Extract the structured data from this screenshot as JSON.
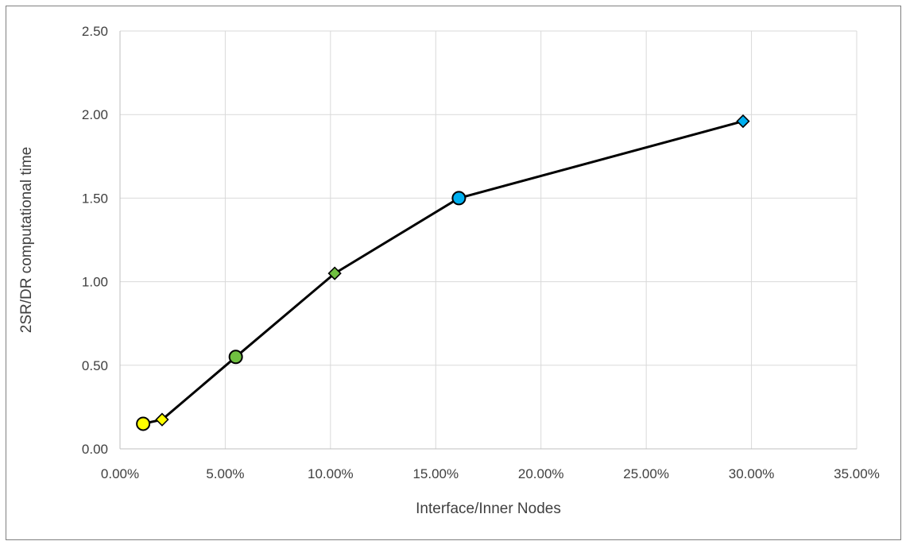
{
  "chart_data": {
    "type": "scatter",
    "title": "",
    "xlabel": "Interface/Inner Nodes",
    "ylabel": "2SR/DR computational time",
    "xlim": [
      0,
      0.35
    ],
    "ylim": [
      0,
      2.5
    ],
    "x_ticks": [
      "0.00%",
      "5.00%",
      "10.00%",
      "15.00%",
      "20.00%",
      "25.00%",
      "30.00%",
      "35.00%"
    ],
    "y_ticks": [
      "0.00",
      "0.50",
      "1.00",
      "1.50",
      "2.00",
      "2.50"
    ],
    "x_tick_values": [
      0,
      0.05,
      0.1,
      0.15,
      0.2,
      0.25,
      0.3,
      0.35
    ],
    "y_tick_values": [
      0,
      0.5,
      1.0,
      1.5,
      2.0,
      2.5
    ],
    "grid": true,
    "legend": "none",
    "line_color": "#000000",
    "series": [
      {
        "points": [
          {
            "x": 0.011,
            "y": 0.15,
            "marker": "circle",
            "color": "#ffff00"
          },
          {
            "x": 0.02,
            "y": 0.175,
            "marker": "diamond",
            "color": "#ffff00"
          },
          {
            "x": 0.055,
            "y": 0.55,
            "marker": "circle",
            "color": "#70c040"
          },
          {
            "x": 0.102,
            "y": 1.05,
            "marker": "diamond",
            "color": "#70c040"
          },
          {
            "x": 0.161,
            "y": 1.5,
            "marker": "circle",
            "color": "#00b0f0"
          },
          {
            "x": 0.296,
            "y": 1.96,
            "marker": "diamond",
            "color": "#00b0f0"
          }
        ]
      }
    ]
  }
}
